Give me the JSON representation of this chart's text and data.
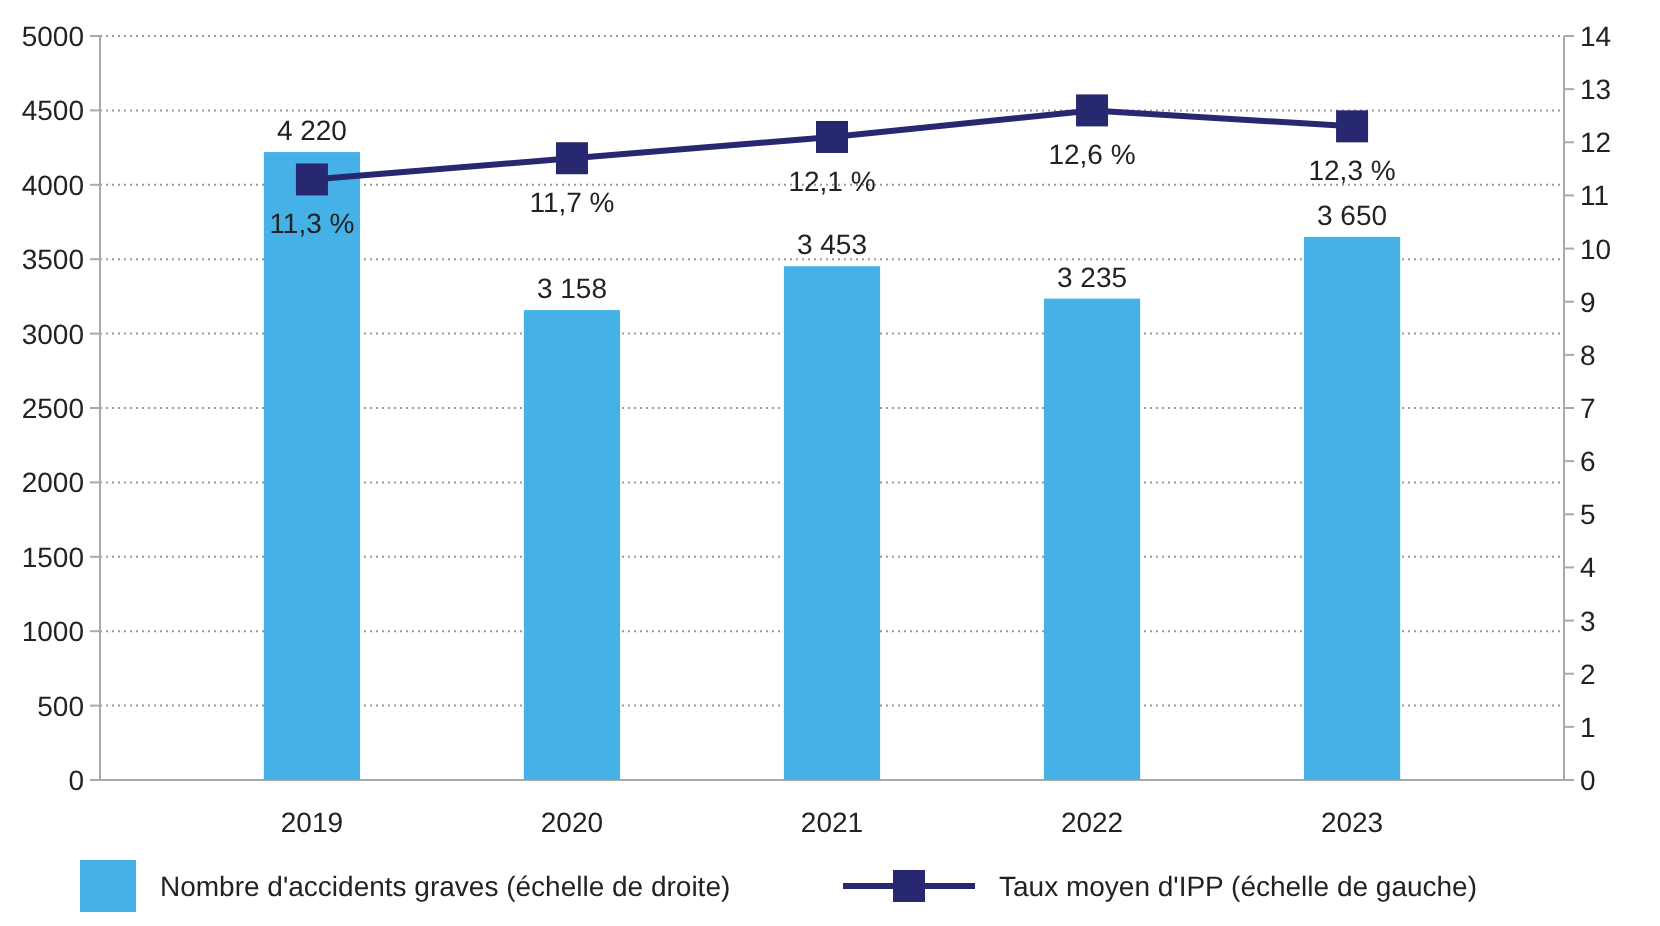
{
  "chart_data": {
    "type": "bar",
    "categories": [
      "2019",
      "2020",
      "2021",
      "2022",
      "2023"
    ],
    "series": [
      {
        "name": "Nombre d'accidents graves (échelle de droite)",
        "color": "#45b1e6",
        "values": [
          4220,
          3158,
          3453,
          3235,
          3650
        ],
        "value_labels": [
          "4 220",
          "3 158",
          "3 453",
          "3 235",
          "3 650"
        ]
      },
      {
        "type": "line",
        "name": "Taux moyen d'IPP (échelle de gauche)",
        "color": "#27286f",
        "axis": "y2",
        "values": [
          11.3,
          11.7,
          12.1,
          12.6,
          12.3
        ],
        "value_labels": [
          "11,3 %",
          "11,7 %",
          "12,1 %",
          "12,6 %",
          "12,3 %"
        ]
      }
    ],
    "ylim": [
      0,
      5000
    ],
    "yticks": [
      0,
      500,
      1000,
      1500,
      2000,
      2500,
      3000,
      3500,
      4000,
      4500,
      5000
    ],
    "y2lim": [
      0,
      14
    ],
    "y2ticks": [
      0,
      1,
      2,
      3,
      4,
      5,
      6,
      7,
      8,
      9,
      10,
      11,
      12,
      13,
      14
    ],
    "grid": "y",
    "legend": "bottom",
    "marker": "square",
    "line_style": "solid"
  }
}
